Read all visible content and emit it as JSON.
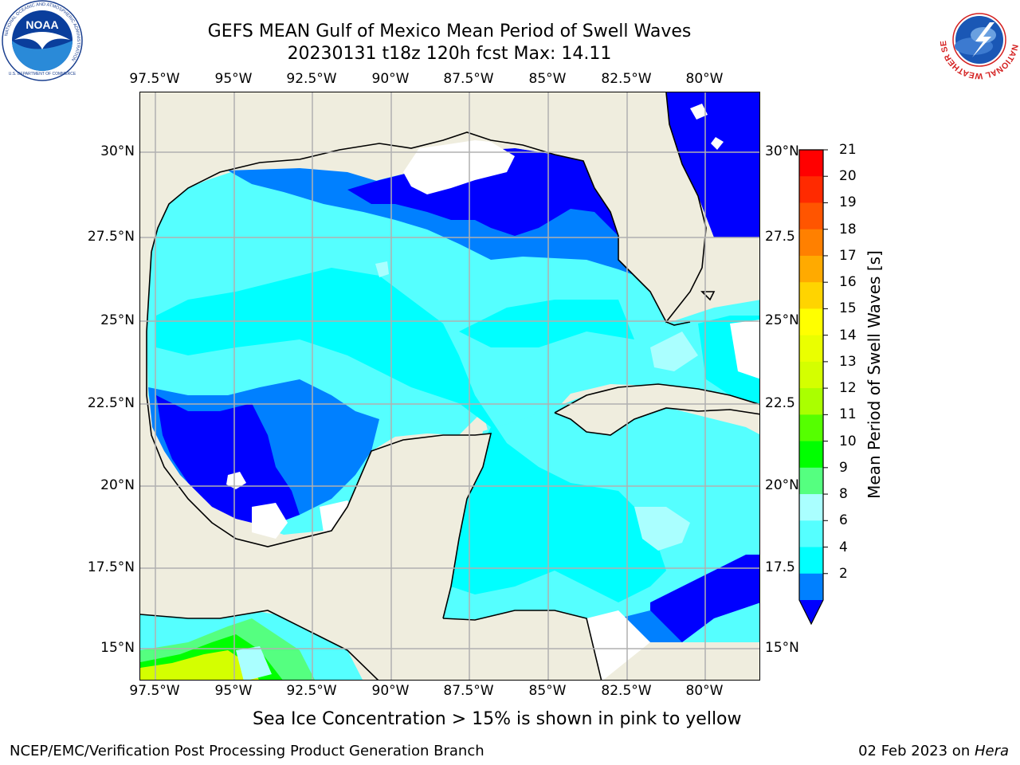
{
  "title": {
    "line1": "GEFS MEAN Gulf of Mexico Mean Period of Swell Waves",
    "line2": "20230131 t18z 120h fcst   Max: 14.11"
  },
  "axes": {
    "lon_labels": [
      "97.5°W",
      "95°W",
      "92.5°W",
      "90°W",
      "87.5°W",
      "85°W",
      "82.5°W",
      "80°W"
    ],
    "lat_labels_left": [
      "30°N",
      "27.5°N",
      "25°N",
      "22.5°N",
      "20°N",
      "17.5°N",
      "15°N"
    ],
    "lat_labels_right": [
      "30°N",
      "27.5",
      "25°N",
      "22.5",
      "20°N",
      "17.5",
      "15°N"
    ]
  },
  "colorbar": {
    "label": "Mean Period of Swell Waves [s]",
    "ticks": [
      "21",
      "20",
      "19",
      "18",
      "17",
      "16",
      "15",
      "14",
      "13",
      "12",
      "11",
      "10",
      "9",
      "8",
      "6",
      "4",
      "2"
    ],
    "colors": [
      "#ff0000",
      "#ff2a00",
      "#ff5500",
      "#ff8000",
      "#ffaa00",
      "#ffd400",
      "#ffff00",
      "#eaff00",
      "#d4ff00",
      "#aaff00",
      "#55ff00",
      "#00ff00",
      "#55ff80",
      "#aaffff",
      "#55ffff",
      "#00ffff",
      "#0080ff"
    ],
    "min_color": "#0000ff"
  },
  "note": "Sea Ice Concentration > 15% is shown in pink to yellow",
  "footer": {
    "left": "NCEP/EMC/Verification Post Processing Product Generation Branch",
    "right_date": "02 Feb 2023 on ",
    "right_host": "Hera"
  },
  "logos": {
    "noaa": "NOAA",
    "noaa_ring": "NATIONAL OCEANIC AND ATMOSPHERIC ADMINISTRATION",
    "noaa_ring_bottom": "U.S. DEPARTMENT OF COMMERCE",
    "nws_ring": "NATIONAL WEATHER SERVICE"
  }
}
